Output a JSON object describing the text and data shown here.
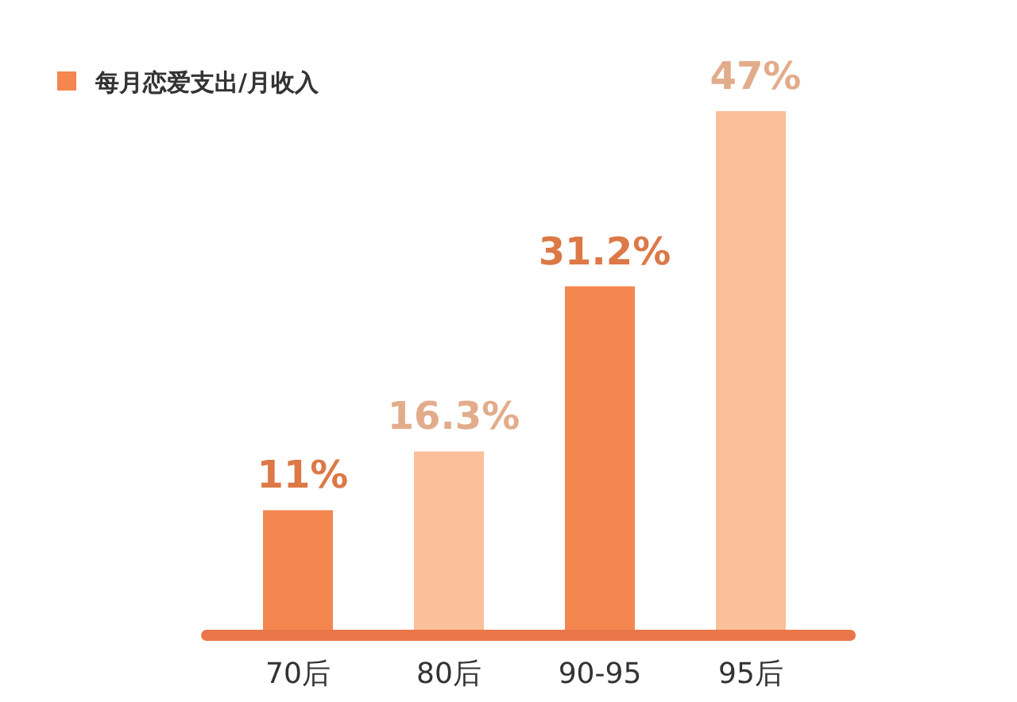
{
  "chart_data": {
    "type": "bar",
    "categories": [
      "70后",
      "80后",
      "90-95",
      "95后"
    ],
    "series": [
      {
        "name": "每月恋爱支出/月收入",
        "color": "#f4864f",
        "colors": [
          "#f4864f",
          "#fbbf9a",
          "#f4864f",
          "#fbbf9a"
        ],
        "values": [
          11,
          16.3,
          31.2,
          47
        ],
        "value_labels": [
          "11%",
          "16.3%",
          "31.2%",
          "47%"
        ]
      }
    ],
    "legend": "top left"
  }
}
